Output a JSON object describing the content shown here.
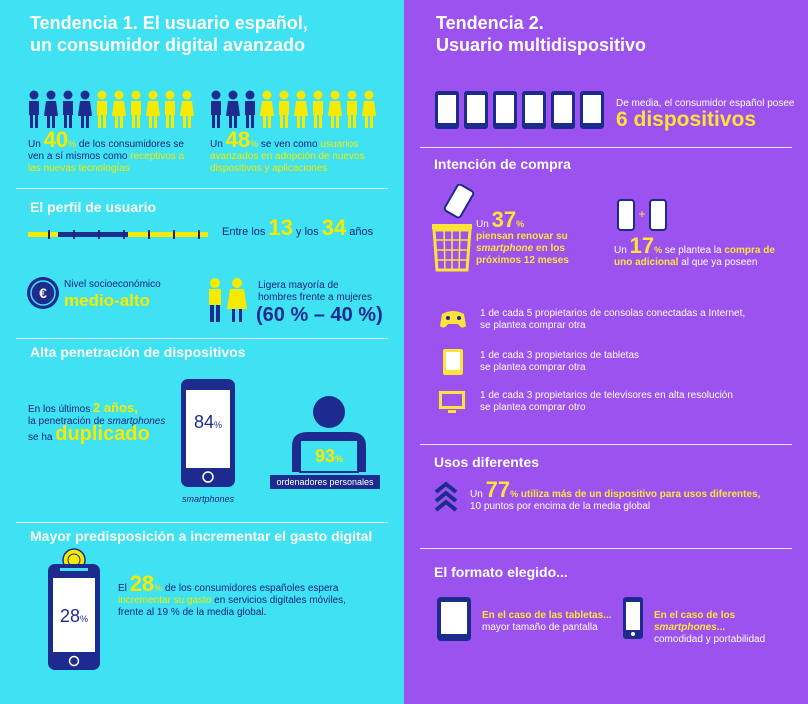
{
  "left": {
    "title": [
      "Tendencia 1. El usuario español,",
      "un consumidor digital avanzado"
    ],
    "stat_receptive": {
      "pre": "Un",
      "number": "40",
      "unit": "%",
      "text": "de los consumidores se ven a sí mismos como",
      "highlight": "receptivos a las nuevas tecnologías"
    },
    "stat_advanced": {
      "pre": "Un",
      "number": "48",
      "unit": "%",
      "text": "se ven como",
      "highlight": "usuarios avanzados en adopción de nuevos dispositivos y aplicaciones"
    },
    "profile": {
      "heading": "El perfil de usuario",
      "age": {
        "pre": "Entre los",
        "from": "13",
        "mid": "y los",
        "to": "34",
        "post": "años"
      },
      "socio": {
        "label": "Nivel socioeconómico",
        "value": "medio-alto"
      },
      "gender": {
        "label": "Ligera mayoría de hombres frente a mujeres",
        "ratio": "(60 % – 40 %)"
      }
    },
    "penetration": {
      "heading": "Alta penetración de dispositivos",
      "pre": "En los últimos",
      "years": "2 años,",
      "mid": "la penetración de",
      "device": "smartphones",
      "post": "se ha",
      "verb": "duplicado",
      "smartphones": {
        "number": "84",
        "unit": "%",
        "label": "smartphones"
      },
      "pc": {
        "number": "93",
        "unit": "%",
        "label": "ordenadores personales"
      }
    },
    "spending": {
      "heading": "Mayor predisposición a incrementar el gasto digital",
      "pre": "El",
      "number": "28",
      "unit": "%",
      "text": "de los consumidores españoles espera",
      "highlight": "incrementar su gasto",
      "post": "en servicios digitales móviles, frente al 19 % de la media global.",
      "phone": {
        "number": "28",
        "unit": "%"
      }
    }
  },
  "right": {
    "title": [
      "Tendencia 2.",
      "Usuario multidispositivo"
    ],
    "devices": {
      "text": "De media, el consumidor español posee",
      "value": "6 dispositivos"
    },
    "purchase": {
      "heading": "Intención de compra",
      "renew": {
        "pre": "Un",
        "number": "37",
        "unit": "%",
        "text": "piensan renovar su",
        "device": "smartphone",
        "post": "en los próximos 12 meses"
      },
      "additional": {
        "pre": "Un",
        "number": "17",
        "unit": "%",
        "text": "se plantea la",
        "highlight": "compra de uno adicional",
        "post": "al que ya poseen"
      },
      "items": [
        {
          "line1": "1 de cada 5 propietarios de consolas conectadas a Internet,",
          "line2": "se plantea comprar otra"
        },
        {
          "line1": "1 de cada 3 propietarios de tabletas",
          "line2": "se plantea comprar otra"
        },
        {
          "line1": "1 de cada 3 propietarios de televisores en alta resolución",
          "line2": "se plantea comprar otro"
        }
      ]
    },
    "uses": {
      "heading": "Usos diferentes",
      "pre": "Un",
      "number": "77",
      "unit": "%",
      "text": "utiliza más de un dispositivo para usos diferentes,",
      "note": "10 puntos por encima de la media global"
    },
    "format": {
      "heading": "El formato elegido...",
      "tablets": {
        "title": "En el caso de las tabletas...",
        "reason": "mayor tamaño de pantalla"
      },
      "smartphones": {
        "pre": "En el caso de los",
        "device": "smartphones",
        "post": "...",
        "reason": "comodidad y portabilidad"
      }
    }
  }
}
